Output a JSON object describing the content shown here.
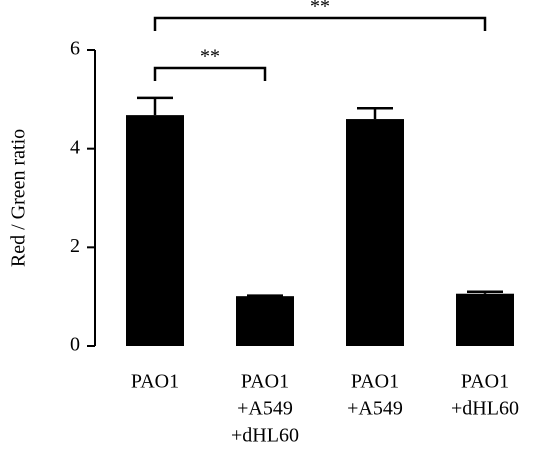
{
  "chart_data": {
    "type": "bar",
    "y_label": "Red / Green ratio",
    "categories": [
      [
        "PAO1"
      ],
      [
        "PAO1",
        "+A549",
        "+dHL60"
      ],
      [
        "PAO1",
        "+A549"
      ],
      [
        "PAO1",
        "+dHL60"
      ]
    ],
    "series": [
      {
        "color": "#000000",
        "values": [
          4.68,
          1.01,
          4.6,
          1.06
        ],
        "errors": [
          0.35,
          0.01,
          0.22,
          0.04
        ]
      }
    ],
    "ylim": [
      0,
      6
    ],
    "yticks": [
      0,
      2,
      4,
      6
    ],
    "annotations": [
      {
        "text": "**",
        "between": [
          0,
          1
        ]
      },
      {
        "text": "**",
        "between": [
          0,
          3
        ]
      }
    ]
  }
}
